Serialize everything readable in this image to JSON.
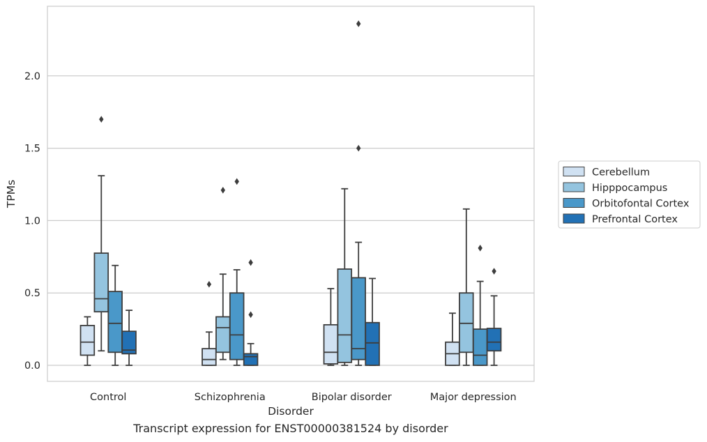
{
  "caption": "Transcript expression for ENST00000381524 by disorder",
  "chart_data": {
    "type": "box",
    "xlabel": "Disorder",
    "ylabel": "TPMs",
    "ylim": [
      -0.11,
      2.49
    ],
    "yticks": [
      0.0,
      0.5,
      1.0,
      1.5,
      2.0
    ],
    "ytick_labels": [
      "0.0",
      "0.5",
      "1.0",
      "1.5",
      "2.0"
    ],
    "grid": "horizontal",
    "legend_position": "right, outside plot",
    "categories": [
      "Control",
      "Schizophrenia",
      "Bipolar disorder",
      "Major depression"
    ],
    "series": [
      {
        "name": "Cerebellum",
        "color": "#d0e1f2",
        "boxes": [
          {
            "whislo": 0.0,
            "q1": 0.07,
            "med": 0.16,
            "q3": 0.275,
            "whishi": 0.335,
            "fliers": []
          },
          {
            "whislo": 0.0,
            "q1": 0.0,
            "med": 0.04,
            "q3": 0.115,
            "whishi": 0.23,
            "fliers": [
              0.56
            ]
          },
          {
            "whislo": 0.0,
            "q1": 0.01,
            "med": 0.09,
            "q3": 0.28,
            "whishi": 0.53,
            "fliers": []
          },
          {
            "whislo": 0.0,
            "q1": 0.0,
            "med": 0.08,
            "q3": 0.16,
            "whishi": 0.36,
            "fliers": []
          }
        ]
      },
      {
        "name": "Hipppocampus",
        "color": "#94c4df",
        "boxes": [
          {
            "whislo": 0.1,
            "q1": 0.37,
            "med": 0.46,
            "q3": 0.775,
            "whishi": 1.31,
            "fliers": [
              1.7
            ]
          },
          {
            "whislo": 0.04,
            "q1": 0.09,
            "med": 0.26,
            "q3": 0.335,
            "whishi": 0.63,
            "fliers": [
              1.21
            ]
          },
          {
            "whislo": 0.0,
            "q1": 0.02,
            "med": 0.21,
            "q3": 0.665,
            "whishi": 1.22,
            "fliers": []
          },
          {
            "whislo": 0.0,
            "q1": 0.09,
            "med": 0.29,
            "q3": 0.5,
            "whishi": 1.08,
            "fliers": []
          }
        ]
      },
      {
        "name": "Orbitofontal Cortex",
        "color": "#4a98c9",
        "boxes": [
          {
            "whislo": 0.0,
            "q1": 0.09,
            "med": 0.29,
            "q3": 0.51,
            "whishi": 0.69,
            "fliers": []
          },
          {
            "whislo": 0.0,
            "q1": 0.04,
            "med": 0.21,
            "q3": 0.5,
            "whishi": 0.66,
            "fliers": [
              1.27
            ]
          },
          {
            "whislo": 0.0,
            "q1": 0.04,
            "med": 0.115,
            "q3": 0.605,
            "whishi": 0.85,
            "fliers": [
              1.5,
              2.36
            ]
          },
          {
            "whislo": 0.0,
            "q1": 0.0,
            "med": 0.07,
            "q3": 0.25,
            "whishi": 0.58,
            "fliers": [
              0.81
            ]
          }
        ]
      },
      {
        "name": "Prefrontal Cortex",
        "color": "#2271b5",
        "boxes": [
          {
            "whislo": 0.0,
            "q1": 0.08,
            "med": 0.105,
            "q3": 0.235,
            "whishi": 0.38,
            "fliers": []
          },
          {
            "whislo": 0.0,
            "q1": 0.0,
            "med": 0.06,
            "q3": 0.08,
            "whishi": 0.15,
            "fliers": [
              0.35,
              0.71
            ]
          },
          {
            "whislo": 0.0,
            "q1": 0.0,
            "med": 0.155,
            "q3": 0.295,
            "whishi": 0.6,
            "fliers": []
          },
          {
            "whislo": 0.0,
            "q1": 0.1,
            "med": 0.16,
            "q3": 0.255,
            "whishi": 0.48,
            "fliers": [
              0.65
            ]
          }
        ]
      }
    ]
  }
}
